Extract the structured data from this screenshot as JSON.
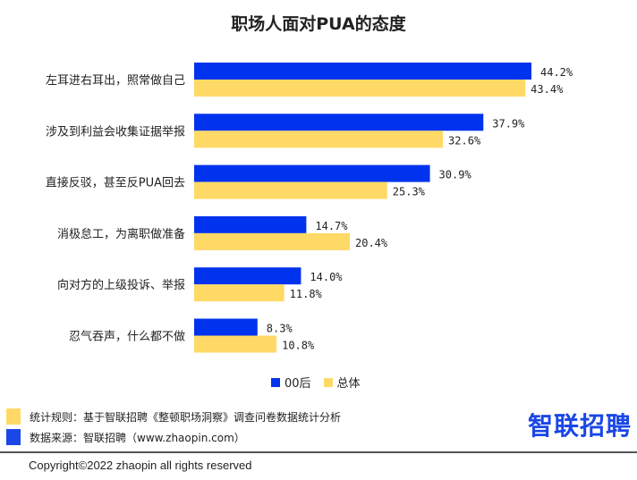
{
  "chart_data": {
    "type": "bar",
    "orientation": "horizontal",
    "title": "职场人面对PUA的态度",
    "categories": [
      "左耳进右耳出，照常做自己",
      "涉及到利益会收集证据举报",
      "直接反驳，甚至反PUA回去",
      "消极怠工，为离职做准备",
      "向对方的上级投诉、举报",
      "忍气吞声，什么都不做"
    ],
    "series": [
      {
        "name": "00后",
        "color": "#0033ee",
        "values": [
          44.2,
          37.9,
          30.9,
          14.7,
          14.0,
          8.3
        ],
        "labels": [
          "44.2%",
          "37.9%",
          "30.9%",
          "14.7%",
          "14.0%",
          "8.3%"
        ]
      },
      {
        "name": "总体",
        "color": "#ffd966",
        "values": [
          43.4,
          32.6,
          25.3,
          20.4,
          11.8,
          10.8
        ],
        "labels": [
          "43.4%",
          "32.6%",
          "25.3%",
          "20.4%",
          "11.8%",
          "10.8%"
        ]
      }
    ],
    "xlim": [
      0,
      50
    ],
    "legend": "bottom",
    "grid": false
  },
  "notes": {
    "rule": "统计规则：基于智联招聘《整顿职场洞察》调查问卷数据统计分析",
    "source": "数据来源：智联招聘（www.zhaopin.com）",
    "rule_color": "#ffd966",
    "source_color": "#1a47e6"
  },
  "logo": "智联招聘",
  "copyright": "Copyright©2022 zhaopin all rights reserved"
}
